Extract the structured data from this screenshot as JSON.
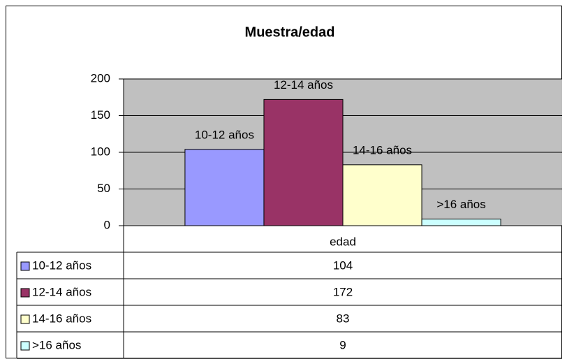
{
  "chart_data": {
    "type": "bar",
    "title": "Muestra/edad",
    "categories": [
      "edad"
    ],
    "series": [
      {
        "name": "10-12 años",
        "color": "#9999ff",
        "values": [
          104
        ]
      },
      {
        "name": "12-14 años",
        "color": "#993366",
        "values": [
          172
        ]
      },
      {
        "name": "14-16 años",
        "color": "#ffffcc",
        "values": [
          83
        ]
      },
      {
        "name": ">16 años",
        "color": "#ccffff",
        "values": [
          9
        ]
      }
    ],
    "ylim": [
      0,
      200
    ],
    "yticks": [
      0,
      50,
      100,
      150,
      200
    ],
    "grid": true,
    "plot_background": "#c0c0c0",
    "data_table": true
  }
}
